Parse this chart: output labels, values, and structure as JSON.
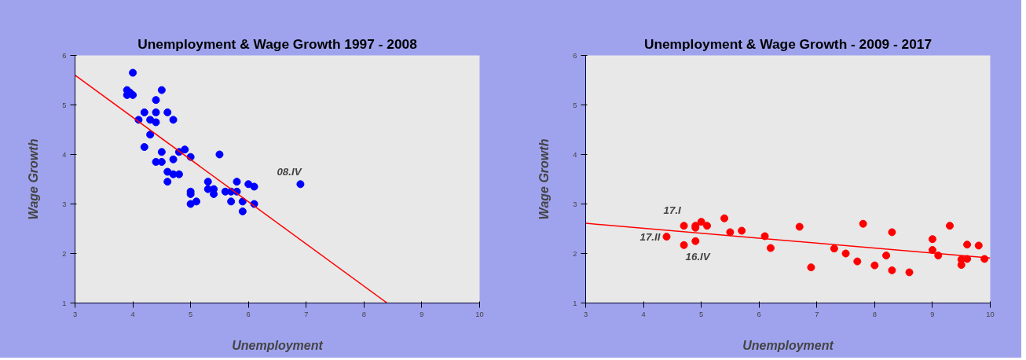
{
  "chart_data": [
    {
      "type": "scatter",
      "title": "Unemployment & Wage Growth 1997 - 2008",
      "xlabel": "Unemployment",
      "ylabel": "Wage Growth",
      "xlim": [
        3,
        10
      ],
      "ylim": [
        1,
        6
      ],
      "xticks": [
        3,
        4,
        5,
        6,
        7,
        8,
        9,
        10
      ],
      "yticks": [
        1,
        2,
        3,
        4,
        5,
        6
      ],
      "grid": false,
      "marker": "circle",
      "series": [
        {
          "color": "#0000ff",
          "x": [
            3.9,
            3.9,
            3.95,
            4.0,
            4.0,
            4.1,
            4.2,
            4.2,
            4.3,
            4.3,
            4.4,
            4.4,
            4.4,
            4.4,
            4.5,
            4.5,
            4.5,
            4.6,
            4.6,
            4.6,
            4.7,
            4.7,
            4.7,
            4.8,
            4.8,
            4.9,
            5.0,
            5.0,
            5.0,
            5.0,
            5.1,
            5.3,
            5.3,
            5.4,
            5.4,
            5.5,
            5.6,
            5.7,
            5.7,
            5.8,
            5.8,
            5.9,
            5.9,
            6.0,
            6.1,
            6.1,
            6.9
          ],
          "values": [
            5.2,
            5.3,
            5.25,
            5.65,
            5.2,
            4.7,
            4.85,
            4.15,
            4.7,
            4.4,
            5.1,
            4.85,
            4.65,
            3.85,
            5.3,
            4.05,
            3.85,
            4.85,
            3.65,
            3.45,
            4.7,
            3.9,
            3.6,
            4.05,
            3.6,
            4.1,
            3.95,
            3.2,
            3.25,
            3.0,
            3.05,
            3.45,
            3.3,
            3.3,
            3.2,
            4.0,
            3.25,
            3.25,
            3.05,
            3.45,
            3.25,
            3.05,
            2.85,
            3.4,
            3.35,
            3.0,
            3.4
          ]
        },
        {
          "type": "line",
          "marker": "none",
          "color": "#ff0000",
          "x": [
            3,
            8.4
          ],
          "values": [
            5.6,
            1.0
          ]
        }
      ],
      "annotations": [
        {
          "text": "08.IV",
          "x": 6.9,
          "y": 3.4
        }
      ]
    },
    {
      "type": "scatter",
      "title": "Unemployment & Wage Growth - 2009 - 2017",
      "xlabel": "Unemployment",
      "ylabel": "Wage Growth",
      "xlim": [
        3,
        10
      ],
      "ylim": [
        1,
        6
      ],
      "xticks": [
        3,
        4,
        5,
        6,
        7,
        8,
        9,
        10
      ],
      "yticks": [
        1,
        2,
        3,
        4,
        5,
        6
      ],
      "grid": false,
      "marker": "circle",
      "series": [
        {
          "color": "#ff0000",
          "x": [
            4.4,
            4.7,
            4.7,
            4.9,
            4.9,
            4.9,
            5.0,
            5.1,
            5.4,
            5.5,
            5.7,
            6.1,
            6.2,
            6.7,
            6.9,
            7.3,
            7.5,
            7.7,
            7.8,
            8.0,
            8.2,
            8.3,
            8.3,
            8.6,
            9.0,
            9.0,
            9.1,
            9.3,
            9.5,
            9.5,
            9.6,
            9.6,
            9.8,
            9.9
          ],
          "values": [
            2.34,
            2.56,
            2.17,
            2.56,
            2.52,
            2.25,
            2.64,
            2.56,
            2.71,
            2.43,
            2.46,
            2.35,
            2.11,
            2.54,
            1.72,
            2.1,
            2.0,
            1.84,
            2.6,
            1.76,
            1.96,
            2.43,
            1.66,
            1.62,
            2.29,
            2.07,
            1.96,
            2.56,
            1.88,
            1.77,
            2.18,
            1.89,
            2.16,
            1.89
          ]
        },
        {
          "type": "line",
          "marker": "none",
          "color": "#ff0000",
          "x": [
            3,
            10
          ],
          "values": [
            2.61,
            1.91
          ]
        }
      ],
      "annotations": [
        {
          "text": "17.I",
          "x": 4.7,
          "y": 2.56
        },
        {
          "text": "17.II",
          "x": 4.4,
          "y": 2.34
        },
        {
          "text": "16.IV",
          "x": 4.7,
          "y": 2.17
        }
      ]
    }
  ]
}
